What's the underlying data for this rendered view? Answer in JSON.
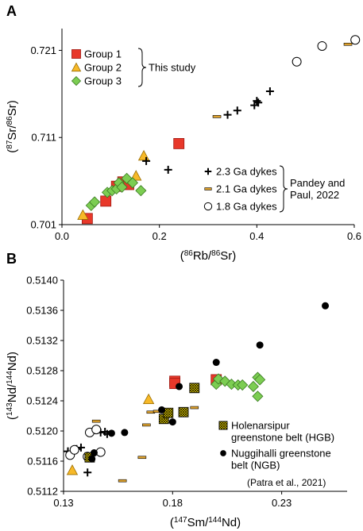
{
  "chart_data": [
    {
      "panel_label": "A",
      "type": "scatter",
      "xlabel_parts": [
        "(",
        "86",
        "Rb/",
        "86",
        "Sr)"
      ],
      "ylabel_parts": [
        "(",
        "87",
        "Sr/",
        "86",
        "Sr)"
      ],
      "xlim": [
        0.0,
        0.6
      ],
      "ylim": [
        0.701,
        0.7235
      ],
      "xticks": [
        0.0,
        0.2,
        0.4,
        0.6
      ],
      "xtick_labels": [
        "0.0",
        "0.2",
        "0.4",
        "0.6"
      ],
      "yticks": [
        0.701,
        0.711,
        0.721
      ],
      "ytick_labels": [
        "0.701",
        "0.711",
        "0.721"
      ],
      "grid": false,
      "legends": [
        {
          "placement": "top-left",
          "bracket_label_lines": [
            "This study"
          ],
          "entries": [
            {
              "marker": "square",
              "label": "Group 1"
            },
            {
              "marker": "triangle",
              "label": "Group 2"
            },
            {
              "marker": "diamond",
              "label": "Group 3"
            }
          ]
        },
        {
          "placement": "bottom-right",
          "bracket_label_lines": [
            "Pandey and",
            "Paul, 2022"
          ],
          "entries": [
            {
              "marker": "plus",
              "label": "2.3 Ga dykes"
            },
            {
              "marker": "dash",
              "label": "2.1 Ga dykes"
            },
            {
              "marker": "circle",
              "label": "1.8 Ga dykes"
            }
          ]
        }
      ],
      "series": [
        {
          "name": "Group 1",
          "marker": "square",
          "points": [
            [
              0.052,
              0.7017
            ],
            [
              0.09,
              0.7037
            ],
            [
              0.112,
              0.7054
            ],
            [
              0.125,
              0.7059
            ],
            [
              0.137,
              0.7056
            ],
            [
              0.24,
              0.7103
            ]
          ]
        },
        {
          "name": "Group 2",
          "marker": "triangle",
          "points": [
            [
              0.043,
              0.7021
            ],
            [
              0.152,
              0.7066
            ],
            [
              0.168,
              0.7089
            ]
          ]
        },
        {
          "name": "Group 3",
          "marker": "diamond",
          "points": [
            [
              0.06,
              0.7032
            ],
            [
              0.067,
              0.7036
            ],
            [
              0.093,
              0.7047
            ],
            [
              0.103,
              0.7049
            ],
            [
              0.112,
              0.7051
            ],
            [
              0.117,
              0.7058
            ],
            [
              0.123,
              0.7053
            ],
            [
              0.133,
              0.7063
            ],
            [
              0.145,
              0.7058
            ],
            [
              0.162,
              0.7049
            ]
          ]
        },
        {
          "name": "2.3 Ga dykes",
          "marker": "plus",
          "points": [
            [
              0.173,
              0.7083
            ],
            [
              0.218,
              0.7073
            ],
            [
              0.34,
              0.7136
            ],
            [
              0.36,
              0.7141
            ],
            [
              0.395,
              0.7147
            ],
            [
              0.4,
              0.7152
            ],
            [
              0.403,
              0.715
            ],
            [
              0.427,
              0.7163
            ]
          ]
        },
        {
          "name": "2.1 Ga dykes",
          "marker": "dash",
          "points": [
            [
              0.318,
              0.7134
            ],
            [
              0.587,
              0.7217
            ]
          ]
        },
        {
          "name": "1.8 Ga dykes",
          "marker": "circle",
          "points": [
            [
              0.482,
              0.7197
            ],
            [
              0.534,
              0.7215
            ],
            [
              0.602,
              0.7222
            ]
          ]
        }
      ]
    },
    {
      "panel_label": "B",
      "type": "scatter",
      "xlabel_parts": [
        "(",
        "147",
        "Sm/",
        "144",
        "Nd)"
      ],
      "ylabel_parts": [
        "(",
        "143",
        "Nd/",
        "144",
        "Nd)"
      ],
      "xlim": [
        0.13,
        0.26
      ],
      "ylim": [
        0.5112,
        0.514
      ],
      "xticks": [
        0.13,
        0.18,
        0.23
      ],
      "xtick_labels": [
        "0.13",
        "0.18",
        "0.23"
      ],
      "yticks": [
        0.5112,
        0.5116,
        0.512,
        0.5124,
        0.5128,
        0.5132,
        0.5136,
        0.514
      ],
      "ytick_labels": [
        "0.5112",
        "0.5116",
        "0.5120",
        "0.5124",
        "0.5128",
        "0.5132",
        "0.5136",
        "0.5140"
      ],
      "grid": false,
      "legends": [
        {
          "placement": "bottom-right",
          "entries": [
            {
              "marker": "hgb",
              "label_lines": [
                "Holenarsipur",
                "greenstone belt (HGB)"
              ]
            },
            {
              "marker": "dot",
              "label_lines": [
                "Nuggihalli greenstone",
                "belt (NGB)"
              ]
            }
          ],
          "note": "(Patra et al., 2021)"
        }
      ],
      "series": [
        {
          "name": "Group 1",
          "marker": "square",
          "points": [
            [
              0.181,
              0.51266
            ],
            [
              0.181,
              0.51263
            ],
            [
              0.2,
              0.51268
            ]
          ]
        },
        {
          "name": "Group 2",
          "marker": "triangle",
          "points": [
            [
              0.134,
              0.51148
            ],
            [
              0.169,
              0.51242
            ]
          ]
        },
        {
          "name": "Group 3",
          "marker": "diamond",
          "points": [
            [
              0.2,
              0.51262
            ],
            [
              0.201,
              0.51269
            ],
            [
              0.204,
              0.51266
            ],
            [
              0.207,
              0.51262
            ],
            [
              0.21,
              0.51261
            ],
            [
              0.212,
              0.51261
            ],
            [
              0.217,
              0.51259
            ],
            [
              0.219,
              0.51271
            ],
            [
              0.22,
              0.51268
            ],
            [
              0.219,
              0.51246
            ]
          ]
        },
        {
          "name": "2.3 Ga dykes",
          "marker": "plus",
          "points": [
            [
              0.132,
              0.51173
            ],
            [
              0.136,
              0.51176
            ],
            [
              0.138,
              0.51178
            ],
            [
              0.141,
              0.51145
            ],
            [
              0.147,
              0.51198
            ],
            [
              0.149,
              0.51199
            ],
            [
              0.15,
              0.51196
            ]
          ]
        },
        {
          "name": "2.1 Ga dykes",
          "marker": "dash",
          "points": [
            [
              0.145,
              0.51213
            ],
            [
              0.157,
              0.51134
            ],
            [
              0.166,
              0.51165
            ],
            [
              0.168,
              0.51208
            ],
            [
              0.17,
              0.51225
            ],
            [
              0.173,
              0.51226
            ],
            [
              0.19,
              0.51231
            ]
          ]
        },
        {
          "name": "1.8 Ga dykes",
          "marker": "circle",
          "points": [
            [
              0.133,
              0.51168
            ],
            [
              0.135,
              0.51175
            ],
            [
              0.142,
              0.51198
            ],
            [
              0.145,
              0.51202
            ],
            [
              0.147,
              0.51172
            ],
            [
              0.141,
              0.51166
            ]
          ]
        },
        {
          "name": "Holenarsipur greenstone belt (HGB)",
          "marker": "hgb",
          "points": [
            [
              0.142,
              0.51165
            ],
            [
              0.176,
              0.51216
            ],
            [
              0.178,
              0.51224
            ],
            [
              0.185,
              0.51225
            ],
            [
              0.19,
              0.51257
            ]
          ]
        },
        {
          "name": "Nuggihalli greenstone belt (NGB)",
          "marker": "dot",
          "points": [
            [
              0.143,
              0.51163
            ],
            [
              0.144,
              0.51171
            ],
            [
              0.152,
              0.51197
            ],
            [
              0.158,
              0.51198
            ],
            [
              0.175,
              0.51228
            ],
            [
              0.18,
              0.51212
            ],
            [
              0.183,
              0.51259
            ],
            [
              0.2,
              0.51291
            ],
            [
              0.22,
              0.51314
            ],
            [
              0.25,
              0.51366
            ]
          ]
        }
      ]
    }
  ]
}
